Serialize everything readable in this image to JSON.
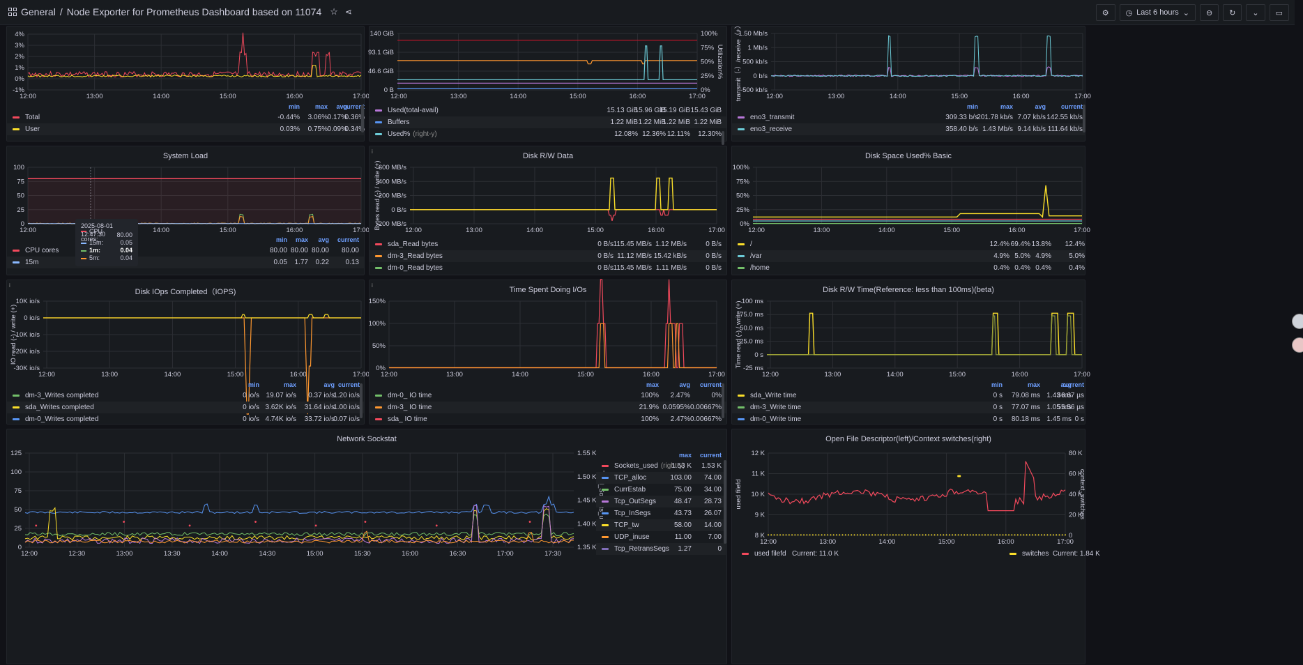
{
  "topbar": {
    "breadcrumb": "General",
    "title": "Node Exporter for Prometheus Dashboard based on 11074",
    "time_range": "Last 6 hours"
  },
  "colors": {
    "red": "#f2495c",
    "yellow": "#fade2a",
    "green": "#73bf69",
    "blue": "#5794f2",
    "orange": "#ff9830",
    "purple": "#b877d9",
    "cyan": "#8ab8ff",
    "teal": "#6ccbd7"
  },
  "panels": {
    "cpu": {
      "title": "",
      "yticks": [
        "4%",
        "3%",
        "2%",
        "1%",
        "0%",
        "-1%"
      ],
      "xticks": [
        "12:00",
        "13:00",
        "14:00",
        "15:00",
        "16:00",
        "17:00"
      ],
      "legend_header": [
        "min",
        "max",
        "avg",
        "current"
      ],
      "rows": [
        {
          "name": "Total",
          "color": "#f2495c",
          "vals": [
            "-0.44%",
            "3.06%",
            "0.17%",
            "0.36%"
          ]
        },
        {
          "name": "User",
          "color": "#fade2a",
          "vals": [
            "0.03%",
            "0.75%",
            "0.09%",
            "0.34%"
          ]
        }
      ]
    },
    "memory": {
      "title": "",
      "yticks": [
        "140 GiB",
        "93.1 GiB",
        "46.6 GiB",
        "0 B"
      ],
      "y2ticks": [
        "100%",
        "75%",
        "50%",
        "25%",
        "0%"
      ],
      "y2label": "Utilization%",
      "xticks": [
        "12:00",
        "13:00",
        "14:00",
        "15:00",
        "16:00",
        "17:00"
      ],
      "rows": [
        {
          "name": "Used(total-avail)",
          "suffix": "",
          "color": "#b877d9",
          "vals": [
            "15.13 GiB",
            "15.96 GiB",
            "15.19 GiB",
            "15.43 GiB"
          ]
        },
        {
          "name": "Buffers",
          "suffix": "",
          "color": "#5794f2",
          "vals": [
            "1.22 MiB",
            "1.22 MiB",
            "1.22 MiB",
            "1.22 MiB"
          ]
        },
        {
          "name": "Used%",
          "suffix": "(right-y)",
          "color": "#6ccbd7",
          "vals": [
            "12.08%",
            "12.36%",
            "12.11%",
            "12.30%"
          ]
        }
      ]
    },
    "network": {
      "title": "",
      "yticks": [
        "1.50 Mb/s",
        "1 Mb/s",
        "500 kb/s",
        "0 b/s",
        "-500 kb/s"
      ],
      "ylabel": "transmit（-）/receive（+）",
      "xticks": [
        "12:00",
        "13:00",
        "14:00",
        "15:00",
        "16:00",
        "17:00"
      ],
      "legend_header": [
        "min",
        "max",
        "avg",
        "current"
      ],
      "rows": [
        {
          "name": "eno3_transmit",
          "color": "#b877d9",
          "vals": [
            "309.33 b/s",
            "201.78 kb/s",
            "7.07 kb/s",
            "142.55 kb/s"
          ]
        },
        {
          "name": "eno3_receive",
          "color": "#6ccbd7",
          "vals": [
            "358.40 b/s",
            "1.43 Mb/s",
            "9.14 kb/s",
            "111.64 kb/s"
          ]
        }
      ]
    },
    "sysload": {
      "title": "System Load",
      "yticks": [
        "100",
        "75",
        "50",
        "25",
        "0"
      ],
      "xticks": [
        "12:00",
        "13:00",
        "14:00",
        "15:00",
        "16:00",
        "17:00"
      ],
      "legend_header": [
        "min",
        "max",
        "avg",
        "current"
      ],
      "rows": [
        {
          "name": "CPU cores",
          "color": "#f2495c",
          "vals": [
            "80.00",
            "80.00",
            "80.00",
            "80.00"
          ]
        },
        {
          "name": "15m",
          "color": "#8ab8ff",
          "vals": [
            "0.05",
            "1.77",
            "0.22",
            "0.13"
          ]
        }
      ],
      "tooltip": {
        "time": "2025-08-01 12:47:30",
        "items": [
          {
            "name": "CPU cores:",
            "value": "80.00",
            "color": "#f2495c",
            "bold": false
          },
          {
            "name": "15m:",
            "value": "0.05",
            "color": "#8ab8ff",
            "bold": false
          },
          {
            "name": "1m:",
            "value": "0.04",
            "color": "#73bf69",
            "bold": true
          },
          {
            "name": "5m:",
            "value": "0.04",
            "color": "#ff9830",
            "bold": false
          }
        ]
      }
    },
    "diskrw": {
      "title": "Disk R/W Data",
      "yticks": [
        "600 MB/s",
        "400 MB/s",
        "200 MB/s",
        "0 B/s",
        "-200 MB/s"
      ],
      "ylabel": "Bytes read (-) / write (+)",
      "xticks": [
        "12:00",
        "13:00",
        "14:00",
        "15:00",
        "16:00",
        "17:00"
      ],
      "rows": [
        {
          "name": "sda_Read bytes",
          "color": "#f2495c",
          "vals": [
            "0 B/s",
            "115.45 MB/s",
            "1.12 MB/s",
            "0 B/s"
          ]
        },
        {
          "name": "dm-3_Read bytes",
          "color": "#ff9830",
          "vals": [
            "0 B/s",
            "11.12 MB/s",
            "15.42 kB/s",
            "0 B/s"
          ]
        },
        {
          "name": "dm-0_Read bytes",
          "color": "#73bf69",
          "vals": [
            "0 B/s",
            "115.45 MB/s",
            "1.11 MB/s",
            "0 B/s"
          ]
        }
      ]
    },
    "diskspace": {
      "title": "Disk Space Used% Basic",
      "yticks": [
        "100%",
        "75%",
        "50%",
        "25%",
        "0%"
      ],
      "xticks": [
        "12:00",
        "13:00",
        "14:00",
        "15:00",
        "16:00",
        "17:00"
      ],
      "rows": [
        {
          "name": "/",
          "color": "#fade2a",
          "vals": [
            "12.4%",
            "69.4%",
            "13.8%",
            "12.4%"
          ]
        },
        {
          "name": "/var",
          "color": "#6ccbd7",
          "vals": [
            "4.9%",
            "5.0%",
            "4.9%",
            "5.0%"
          ]
        },
        {
          "name": "/home",
          "color": "#73bf69",
          "vals": [
            "0.4%",
            "0.4%",
            "0.4%",
            "0.4%"
          ]
        }
      ]
    },
    "iops": {
      "title": "Disk IOps Completed（IOPS)",
      "yticks": [
        "10K io/s",
        "0 io/s",
        "-10K io/s",
        "-20K io/s",
        "-30K io/s"
      ],
      "ylabel": "IO read (-) / write (+)",
      "xticks": [
        "12:00",
        "13:00",
        "14:00",
        "15:00",
        "16:00",
        "17:00"
      ],
      "legend_header": [
        "min",
        "max",
        "avg",
        "current"
      ],
      "rows": [
        {
          "name": "dm-3_Writes completed",
          "color": "#73bf69",
          "vals": [
            "0 io/s",
            "19.07 io/s",
            "0.37 io/s",
            "1.20 io/s"
          ]
        },
        {
          "name": "sda_Writes completed",
          "color": "#fade2a",
          "vals": [
            "0 io/s",
            "3.62K io/s",
            "31.64 io/s",
            "1.00 io/s"
          ]
        },
        {
          "name": "dm-0_Writes completed",
          "color": "#5794f2",
          "vals": [
            "0 io/s",
            "4.74K io/s",
            "33.72 io/s",
            "0.07 io/s"
          ]
        }
      ]
    },
    "iotime": {
      "title": "Time Spent Doing I/Os",
      "yticks": [
        "150%",
        "100%",
        "50%",
        "0%"
      ],
      "xticks": [
        "12:00",
        "13:00",
        "14:00",
        "15:00",
        "16:00",
        "17:00"
      ],
      "legend_header": [
        "max",
        "avg",
        "current"
      ],
      "rows": [
        {
          "name": "dm-0_ IO time",
          "color": "#73bf69",
          "vals": [
            "100%",
            "2.47%",
            "0%"
          ]
        },
        {
          "name": "dm-3_ IO time",
          "color": "#ff9830",
          "vals": [
            "21.9%",
            "0.0595%",
            "0.00667%"
          ]
        },
        {
          "name": "sda_ IO time",
          "color": "#f2495c",
          "vals": [
            "100%",
            "2.47%",
            "0.00667%"
          ]
        }
      ]
    },
    "rwtime": {
      "title": "Disk R/W Time(Reference: less than 100ms)(beta)",
      "yticks": [
        "100 ms",
        "75.0 ms",
        "50.0 ms",
        "25.0 ms",
        "0 s",
        "-25 ms"
      ],
      "ylabel": "Time read (-) / write (+)",
      "xticks": [
        "12:00",
        "13:00",
        "14:00",
        "15:00",
        "16:00",
        "17:00"
      ],
      "legend_header": [
        "min",
        "max",
        "avg",
        "current"
      ],
      "rows": [
        {
          "name": "sda_Write time",
          "color": "#fade2a",
          "vals": [
            "0 s",
            "79.08 ms",
            "1.43 ms",
            "66.67 µs"
          ]
        },
        {
          "name": "dm-3_Write time",
          "color": "#73bf69",
          "vals": [
            "0 s",
            "77.07 ms",
            "1.05 ms",
            "55.56 µs"
          ]
        },
        {
          "name": "dm-0_Write time",
          "color": "#5794f2",
          "vals": [
            "0 s",
            "80.18 ms",
            "1.45 ms",
            "0 s"
          ]
        }
      ]
    },
    "sockstat": {
      "title": "Network Sockstat",
      "yticks": [
        "125",
        "100",
        "75",
        "50",
        "25",
        "0"
      ],
      "y2ticks": [
        "1.55 K",
        "1.50 K",
        "1.45 K",
        "1.40 K",
        "1.35 K"
      ],
      "y2label": "Total_Sockets_used",
      "xticks": [
        "12:00",
        "12:30",
        "13:00",
        "13:30",
        "14:00",
        "14:30",
        "15:00",
        "15:30",
        "16:00",
        "16:30",
        "17:00",
        "17:30"
      ],
      "legend_header": [
        "max",
        "current"
      ],
      "rows": [
        {
          "name": "Sockets_used",
          "suffix": "(right-y)",
          "color": "#f2495c",
          "vals": [
            "1.53 K",
            "1.53 K"
          ]
        },
        {
          "name": "TCP_alloc",
          "suffix": "",
          "color": "#5794f2",
          "vals": [
            "103.00",
            "74.00"
          ]
        },
        {
          "name": "CurrEstab",
          "suffix": "",
          "color": "#73bf69",
          "vals": [
            "75.00",
            "34.00"
          ]
        },
        {
          "name": "Tcp_OutSegs",
          "suffix": "",
          "color": "#b877d9",
          "vals": [
            "48.47",
            "28.73"
          ]
        },
        {
          "name": "Tcp_InSegs",
          "suffix": "",
          "color": "#5794f2",
          "vals": [
            "43.73",
            "26.07"
          ]
        },
        {
          "name": "TCP_tw",
          "suffix": "",
          "color": "#fade2a",
          "vals": [
            "58.00",
            "14.00"
          ]
        },
        {
          "name": "UDP_inuse",
          "suffix": "",
          "color": "#ff9830",
          "vals": [
            "11.00",
            "7.00"
          ]
        },
        {
          "name": "Tcp_RetransSegs",
          "suffix": "",
          "color": "#806eb7",
          "vals": [
            "1.27",
            "0"
          ]
        }
      ]
    },
    "filefd": {
      "title": "Open File Descriptor(left)/Context switches(right)",
      "yticks": [
        "12 K",
        "11 K",
        "10 K",
        "9 K",
        "8 K"
      ],
      "y2ticks": [
        "80 K",
        "60 K",
        "40 K",
        "20 K",
        "0"
      ],
      "ylabel": "used filefd",
      "y2label": "context_switches",
      "xticks": [
        "12:00",
        "13:00",
        "14:00",
        "15:00",
        "16:00",
        "17:00"
      ],
      "legend": [
        {
          "name": "used filefd",
          "current": "Current: 11.0 K",
          "color": "#f2495c"
        },
        {
          "name": "switches",
          "current": "Current: 1.84 K",
          "color": "#fade2a"
        }
      ]
    }
  }
}
